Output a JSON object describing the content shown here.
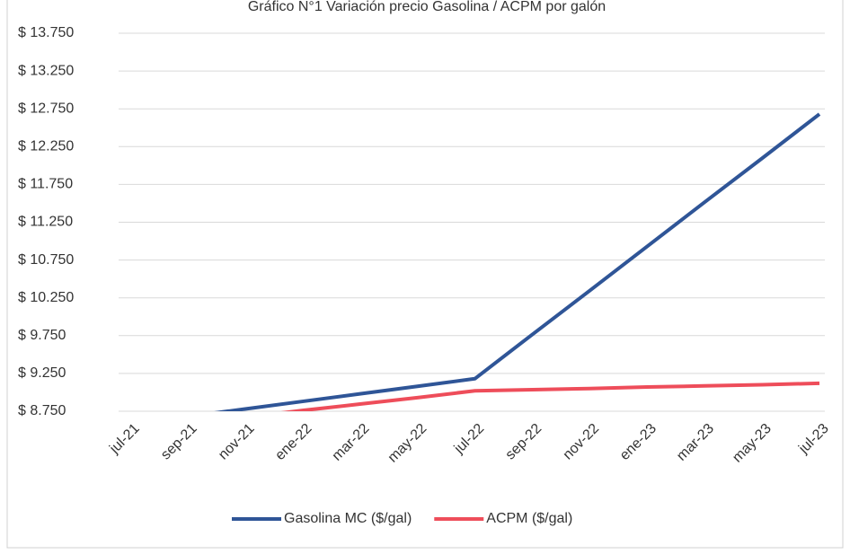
{
  "chart_data": {
    "type": "line",
    "title": "Gráfico N°1 Variación precio Gasolina / ACPM por galón",
    "categories": [
      "jul-21",
      "sep-21",
      "nov-21",
      "ene-22",
      "mar-22",
      "may-22",
      "jul-22",
      "sep-22",
      "nov-22",
      "ene-23",
      "mar-23",
      "may-23",
      "jul-23"
    ],
    "series": [
      {
        "name": "Gasolina MC ($/gal)",
        "color": "#2f5597",
        "values": [
          8580,
          8680,
          8780,
          8880,
          8980,
          9080,
          9180,
          9765,
          10345,
          10930,
          11515,
          12095,
          12680
        ]
      },
      {
        "name": "ACPM ($/gal)",
        "color": "#ee4d5a",
        "values": [
          8550,
          8600,
          8670,
          8760,
          8845,
          8930,
          9020,
          9035,
          9050,
          9070,
          9085,
          9100,
          9120
        ]
      }
    ],
    "ylim": [
      8750,
      13750
    ],
    "yticks": [
      {
        "value": 8750,
        "label": "$ 8.750"
      },
      {
        "value": 9250,
        "label": "$ 9.250"
      },
      {
        "value": 9750,
        "label": "$ 9.750"
      },
      {
        "value": 10250,
        "label": "$ 10.250"
      },
      {
        "value": 10750,
        "label": "$ 10.750"
      },
      {
        "value": 11250,
        "label": "$ 11.250"
      },
      {
        "value": 11750,
        "label": "$ 11.750"
      },
      {
        "value": 12250,
        "label": "$ 12.250"
      },
      {
        "value": 12750,
        "label": "$ 12.750"
      },
      {
        "value": 13250,
        "label": "$ 13.250"
      },
      {
        "value": 13750,
        "label": "$ 13.750"
      }
    ],
    "grid": true,
    "legend": "bottom"
  }
}
